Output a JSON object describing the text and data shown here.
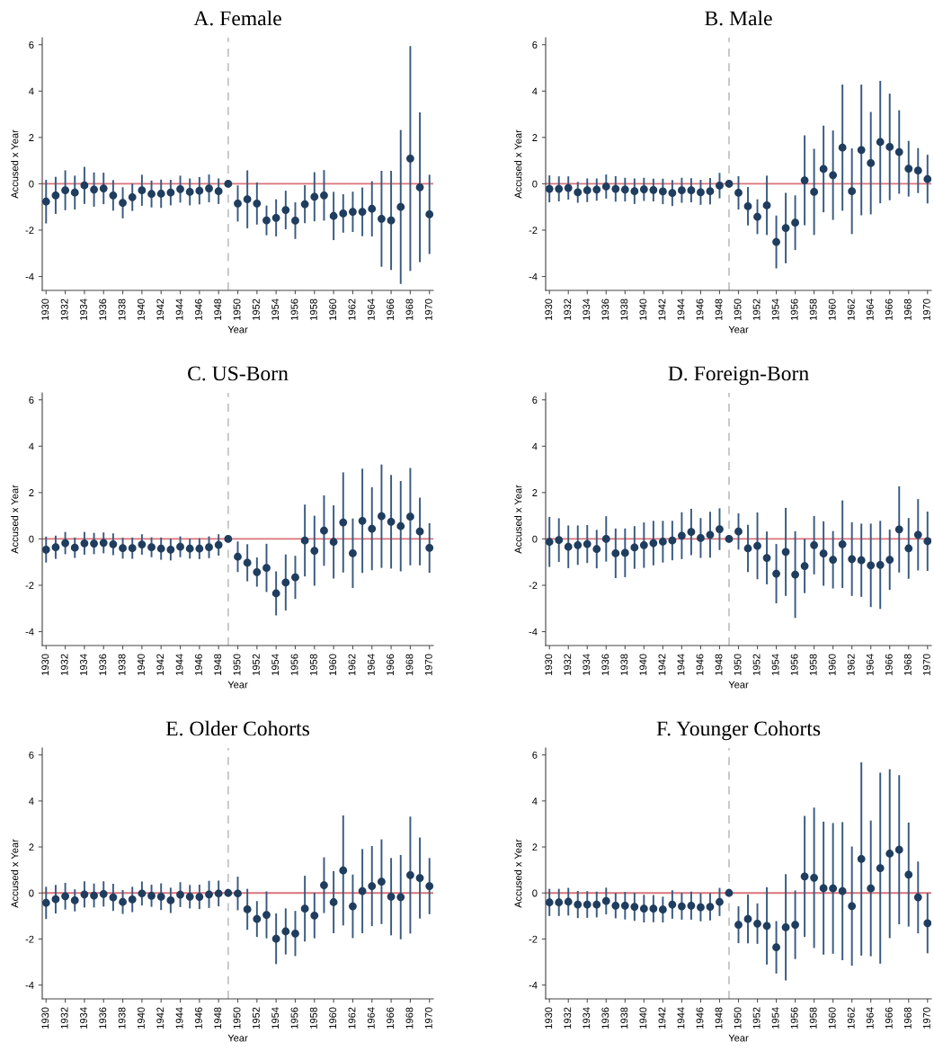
{
  "chart_data": [
    {
      "type": "scatter",
      "title": "A. Female",
      "xlabel": "Year",
      "ylabel": "Accused x Year",
      "color": "#1f3d5f",
      "marker": "circle",
      "x": [
        1930,
        1931,
        1932,
        1933,
        1934,
        1935,
        1936,
        1937,
        1938,
        1939,
        1940,
        1941,
        1942,
        1943,
        1944,
        1945,
        1946,
        1947,
        1948,
        1949,
        1950,
        1951,
        1952,
        1953,
        1954,
        1955,
        1956,
        1957,
        1958,
        1959,
        1960,
        1961,
        1962,
        1963,
        1964,
        1965,
        1966,
        1967,
        1968,
        1969,
        1970
      ],
      "values": [
        -0.77,
        -0.5,
        -0.28,
        -0.38,
        -0.07,
        -0.25,
        -0.2,
        -0.5,
        -0.82,
        -0.58,
        -0.28,
        -0.44,
        -0.43,
        -0.38,
        -0.23,
        -0.35,
        -0.3,
        -0.2,
        -0.32,
        0,
        -0.85,
        -0.67,
        -0.85,
        -1.58,
        -1.47,
        -1.13,
        -1.59,
        -0.88,
        -0.56,
        -0.5,
        -1.39,
        -1.28,
        -1.21,
        -1.21,
        -1.08,
        -1.51,
        -1.58,
        -1.0,
        1.09,
        -0.15,
        -1.32
      ],
      "errors": [
        0.94,
        0.8,
        0.86,
        0.73,
        0.8,
        0.74,
        0.68,
        0.66,
        0.67,
        0.59,
        0.67,
        0.58,
        0.61,
        0.55,
        0.58,
        0.58,
        0.59,
        0.6,
        0.55,
        null,
        0.78,
        1.25,
        0.91,
        0.64,
        0.8,
        0.83,
        0.79,
        0.82,
        1.06,
        1.09,
        1.04,
        0.83,
        0.87,
        1.05,
        1.19,
        2.07,
        2.14,
        3.32,
        4.85,
        3.23,
        1.71
      ],
      "xlim": [
        1929.6,
        1970.4
      ],
      "ylim": [
        -4.6,
        6.3
      ],
      "xticks": [
        1930,
        1932,
        1934,
        1936,
        1938,
        1940,
        1942,
        1944,
        1946,
        1948,
        1950,
        1952,
        1954,
        1956,
        1958,
        1960,
        1962,
        1964,
        1966,
        1968,
        1970
      ],
      "yticks": [
        -4,
        -2,
        0,
        2,
        4,
        6
      ],
      "ref_lines": [
        {
          "axis": "y",
          "value": 0,
          "color": "#d9737a",
          "line_style": "solid"
        },
        {
          "axis": "x",
          "value": 1949,
          "color": "#c4c4c4",
          "line_style": "dashed"
        }
      ]
    },
    {
      "type": "scatter",
      "title": "B. Male",
      "xlabel": "Year",
      "ylabel": "Accused x Year",
      "color": "#1f3d5f",
      "marker": "circle",
      "x": [
        1930,
        1931,
        1932,
        1933,
        1934,
        1935,
        1936,
        1937,
        1938,
        1939,
        1940,
        1941,
        1942,
        1943,
        1944,
        1945,
        1946,
        1947,
        1948,
        1949,
        1950,
        1951,
        1952,
        1953,
        1954,
        1955,
        1956,
        1957,
        1958,
        1959,
        1960,
        1961,
        1962,
        1963,
        1964,
        1965,
        1966,
        1967,
        1968,
        1969,
        1970
      ],
      "values": [
        -0.22,
        -0.22,
        -0.18,
        -0.37,
        -0.28,
        -0.25,
        -0.12,
        -0.22,
        -0.25,
        -0.32,
        -0.24,
        -0.27,
        -0.33,
        -0.4,
        -0.28,
        -0.28,
        -0.37,
        -0.32,
        -0.08,
        0,
        -0.39,
        -0.97,
        -1.42,
        -0.93,
        -2.51,
        -1.91,
        -1.68,
        0.15,
        -0.35,
        0.64,
        0.37,
        1.56,
        -0.32,
        1.46,
        0.89,
        1.8,
        1.59,
        1.37,
        0.65,
        0.57,
        0.2
      ],
      "errors": [
        0.58,
        0.54,
        0.5,
        0.45,
        0.51,
        0.48,
        0.52,
        0.55,
        0.51,
        0.55,
        0.5,
        0.49,
        0.55,
        0.56,
        0.54,
        0.52,
        0.54,
        0.57,
        0.55,
        null,
        0.72,
        0.83,
        0.75,
        1.28,
        1.14,
        1.52,
        1.18,
        1.94,
        1.86,
        1.87,
        1.93,
        2.72,
        1.85,
        2.82,
        2.21,
        2.64,
        2.3,
        1.8,
        1.2,
        0.97,
        1.05
      ],
      "xlim": [
        1929.6,
        1970.4
      ],
      "ylim": [
        -4.6,
        6.3
      ],
      "xticks": [
        1930,
        1932,
        1934,
        1936,
        1938,
        1940,
        1942,
        1944,
        1946,
        1948,
        1950,
        1952,
        1954,
        1956,
        1958,
        1960,
        1962,
        1964,
        1966,
        1968,
        1970
      ],
      "yticks": [
        -4,
        -2,
        0,
        2,
        4,
        6
      ],
      "ref_lines": [
        {
          "axis": "y",
          "value": 0,
          "color": "#d9737a",
          "line_style": "solid"
        },
        {
          "axis": "x",
          "value": 1949,
          "color": "#c4c4c4",
          "line_style": "dashed"
        }
      ]
    },
    {
      "type": "scatter",
      "title": "C. US-Born",
      "xlabel": "Year",
      "ylabel": "Accused x Year",
      "color": "#1f3d5f",
      "marker": "circle",
      "x": [
        1930,
        1931,
        1932,
        1933,
        1934,
        1935,
        1936,
        1937,
        1938,
        1939,
        1940,
        1941,
        1942,
        1943,
        1944,
        1945,
        1946,
        1947,
        1948,
        1949,
        1950,
        1951,
        1952,
        1953,
        1954,
        1955,
        1956,
        1957,
        1958,
        1959,
        1960,
        1961,
        1962,
        1963,
        1964,
        1965,
        1966,
        1967,
        1968,
        1969,
        1970
      ],
      "values": [
        -0.46,
        -0.36,
        -0.18,
        -0.38,
        -0.19,
        -0.2,
        -0.17,
        -0.23,
        -0.4,
        -0.4,
        -0.24,
        -0.36,
        -0.42,
        -0.46,
        -0.34,
        -0.42,
        -0.42,
        -0.36,
        -0.26,
        0,
        -0.77,
        -1.03,
        -1.43,
        -1.25,
        -2.35,
        -1.88,
        -1.66,
        -0.07,
        -0.51,
        0.36,
        -0.13,
        0.71,
        -0.62,
        0.78,
        0.44,
        0.98,
        0.74,
        0.55,
        0.96,
        0.32,
        -0.39
      ],
      "errors": [
        0.56,
        0.5,
        0.48,
        0.44,
        0.49,
        0.46,
        0.45,
        0.47,
        0.45,
        0.46,
        0.44,
        0.43,
        0.48,
        0.47,
        0.45,
        0.43,
        0.45,
        0.47,
        0.46,
        null,
        0.66,
        0.8,
        0.63,
        1.04,
        0.95,
        1.21,
        0.93,
        1.55,
        1.51,
        1.52,
        1.58,
        2.16,
        1.5,
        2.25,
        1.79,
        2.23,
        2.02,
        1.95,
        2.1,
        1.46,
        1.07
      ],
      "xlim": [
        1929.6,
        1970.4
      ],
      "ylim": [
        -4.6,
        6.3
      ],
      "xticks": [
        1930,
        1932,
        1934,
        1936,
        1938,
        1940,
        1942,
        1944,
        1946,
        1948,
        1950,
        1952,
        1954,
        1956,
        1958,
        1960,
        1962,
        1964,
        1966,
        1968,
        1970
      ],
      "yticks": [
        -4,
        -2,
        0,
        2,
        4,
        6
      ],
      "ref_lines": [
        {
          "axis": "y",
          "value": 0,
          "color": "#d9737a",
          "line_style": "solid"
        },
        {
          "axis": "x",
          "value": 1949,
          "color": "#c4c4c4",
          "line_style": "dashed"
        }
      ]
    },
    {
      "type": "scatter",
      "title": "D. Foreign-Born",
      "xlabel": "Year",
      "ylabel": "Accused x Year",
      "color": "#1f3d5f",
      "marker": "circle",
      "x": [
        1930,
        1931,
        1932,
        1933,
        1934,
        1935,
        1936,
        1937,
        1938,
        1939,
        1940,
        1941,
        1942,
        1943,
        1944,
        1945,
        1946,
        1947,
        1948,
        1949,
        1950,
        1951,
        1952,
        1953,
        1954,
        1955,
        1956,
        1957,
        1958,
        1959,
        1960,
        1961,
        1962,
        1963,
        1964,
        1965,
        1966,
        1967,
        1968,
        1969,
        1970
      ],
      "values": [
        -0.13,
        -0.05,
        -0.34,
        -0.27,
        -0.22,
        -0.44,
        0,
        -0.62,
        -0.6,
        -0.37,
        -0.27,
        -0.18,
        -0.12,
        -0.07,
        0.14,
        0.3,
        0.04,
        0.18,
        0.42,
        0,
        0.32,
        -0.41,
        -0.3,
        -0.82,
        -1.5,
        -0.56,
        -1.54,
        -1.17,
        -0.27,
        -0.63,
        -0.9,
        -0.23,
        -0.87,
        -0.92,
        -1.14,
        -1.12,
        -0.9,
        0.41,
        -0.41,
        0.18,
        -0.1
      ],
      "errors": [
        1.08,
        0.94,
        0.92,
        0.85,
        0.82,
        0.83,
        0.98,
        1.07,
        1.05,
        0.92,
        0.98,
        0.96,
        0.9,
        0.85,
        1.01,
        1.0,
        0.86,
        0.99,
        0.9,
        null,
        0.78,
        1.02,
        1.44,
        1.14,
        1.28,
        1.9,
        1.87,
        1.17,
        1.26,
        1.39,
        1.24,
        1.89,
        1.59,
        1.58,
        1.8,
        1.9,
        1.3,
        1.86,
        1.31,
        1.54,
        1.28
      ],
      "xlim": [
        1929.6,
        1970.4
      ],
      "ylim": [
        -4.6,
        6.3
      ],
      "xticks": [
        1930,
        1932,
        1934,
        1936,
        1938,
        1940,
        1942,
        1944,
        1946,
        1948,
        1950,
        1952,
        1954,
        1956,
        1958,
        1960,
        1962,
        1964,
        1966,
        1968,
        1970
      ],
      "yticks": [
        -4,
        -2,
        0,
        2,
        4,
        6
      ],
      "ref_lines": [
        {
          "axis": "y",
          "value": 0,
          "color": "#d9737a",
          "line_style": "solid"
        },
        {
          "axis": "x",
          "value": 1949,
          "color": "#c4c4c4",
          "line_style": "dashed"
        }
      ]
    },
    {
      "type": "scatter",
      "title": "E. Older Cohorts",
      "xlabel": "Year",
      "ylabel": "Accused x Year",
      "color": "#1f3d5f",
      "marker": "circle",
      "x": [
        1930,
        1931,
        1932,
        1933,
        1934,
        1935,
        1936,
        1937,
        1938,
        1939,
        1940,
        1941,
        1942,
        1943,
        1944,
        1945,
        1946,
        1947,
        1948,
        1949,
        1950,
        1951,
        1952,
        1953,
        1954,
        1955,
        1956,
        1957,
        1958,
        1959,
        1960,
        1961,
        1962,
        1963,
        1964,
        1965,
        1966,
        1967,
        1968,
        1969,
        1970
      ],
      "values": [
        -0.43,
        -0.27,
        -0.14,
        -0.32,
        -0.06,
        -0.11,
        -0.04,
        -0.19,
        -0.39,
        -0.28,
        -0.02,
        -0.12,
        -0.16,
        -0.32,
        -0.07,
        -0.16,
        -0.17,
        -0.06,
        -0.02,
        0,
        -0.02,
        -0.71,
        -1.13,
        -0.95,
        -1.99,
        -1.67,
        -1.76,
        -0.68,
        -0.98,
        0.34,
        -0.4,
        0.98,
        -0.58,
        0.08,
        0.3,
        0.49,
        -0.16,
        -0.18,
        0.78,
        0.65,
        0.3
      ],
      "errors": [
        0.7,
        0.62,
        0.58,
        0.48,
        0.57,
        0.52,
        0.55,
        0.59,
        0.52,
        0.55,
        0.52,
        0.48,
        0.58,
        0.55,
        0.54,
        0.51,
        0.53,
        0.59,
        0.56,
        null,
        0.73,
        0.89,
        0.78,
        1.02,
        1.1,
        1.0,
        0.98,
        1.43,
        0.99,
        1.21,
        1.35,
        2.39,
        1.38,
        1.83,
        1.74,
        1.84,
        1.68,
        1.83,
        2.54,
        1.76,
        1.22
      ],
      "xlim": [
        1929.6,
        1970.4
      ],
      "ylim": [
        -4.6,
        6.3
      ],
      "xticks": [
        1930,
        1932,
        1934,
        1936,
        1938,
        1940,
        1942,
        1944,
        1946,
        1948,
        1950,
        1952,
        1954,
        1956,
        1958,
        1960,
        1962,
        1964,
        1966,
        1968,
        1970
      ],
      "yticks": [
        -4,
        -2,
        0,
        2,
        4,
        6
      ],
      "ref_lines": [
        {
          "axis": "y",
          "value": 0,
          "color": "#d9737a",
          "line_style": "solid"
        },
        {
          "axis": "x",
          "value": 1949,
          "color": "#c4c4c4",
          "line_style": "dashed"
        }
      ]
    },
    {
      "type": "scatter",
      "title": "F. Younger Cohorts",
      "xlabel": "Year",
      "ylabel": "Accused x Year",
      "color": "#1f3d5f",
      "marker": "circle",
      "x": [
        1930,
        1931,
        1932,
        1933,
        1934,
        1935,
        1936,
        1937,
        1938,
        1939,
        1940,
        1941,
        1942,
        1943,
        1944,
        1945,
        1946,
        1947,
        1948,
        1949,
        1950,
        1951,
        1952,
        1953,
        1954,
        1955,
        1956,
        1957,
        1958,
        1959,
        1960,
        1961,
        1962,
        1963,
        1964,
        1965,
        1966,
        1967,
        1968,
        1969,
        1970
      ],
      "values": [
        -0.41,
        -0.41,
        -0.38,
        -0.5,
        -0.5,
        -0.5,
        -0.35,
        -0.55,
        -0.55,
        -0.6,
        -0.68,
        -0.68,
        -0.72,
        -0.5,
        -0.58,
        -0.55,
        -0.62,
        -0.6,
        -0.39,
        0,
        -1.38,
        -1.13,
        -1.33,
        -1.43,
        -2.36,
        -1.49,
        -1.38,
        0.72,
        0.66,
        0.21,
        0.2,
        0.08,
        -0.57,
        1.48,
        0.2,
        1.08,
        1.71,
        1.88,
        0.8,
        -0.19,
        -1.31
      ],
      "errors": [
        0.59,
        0.59,
        0.6,
        0.59,
        0.58,
        0.56,
        0.58,
        0.55,
        0.6,
        0.61,
        0.6,
        0.59,
        0.56,
        0.62,
        0.58,
        0.61,
        0.61,
        0.59,
        0.61,
        null,
        0.8,
        1.06,
        0.88,
        1.68,
        1.14,
        2.31,
        1.49,
        2.63,
        3.05,
        2.89,
        2.84,
        3.0,
        2.59,
        4.2,
        2.95,
        4.15,
        3.67,
        3.24,
        2.26,
        1.56,
        1.31
      ],
      "xlim": [
        1929.6,
        1970.4
      ],
      "ylim": [
        -4.6,
        6.3
      ],
      "xticks": [
        1930,
        1932,
        1934,
        1936,
        1938,
        1940,
        1942,
        1944,
        1946,
        1948,
        1950,
        1952,
        1954,
        1956,
        1958,
        1960,
        1962,
        1964,
        1966,
        1968,
        1970
      ],
      "yticks": [
        -4,
        -2,
        0,
        2,
        4,
        6
      ],
      "ref_lines": [
        {
          "axis": "y",
          "value": 0,
          "color": "#d9737a",
          "line_style": "solid"
        },
        {
          "axis": "x",
          "value": 1949,
          "color": "#c4c4c4",
          "line_style": "dashed"
        }
      ]
    }
  ]
}
